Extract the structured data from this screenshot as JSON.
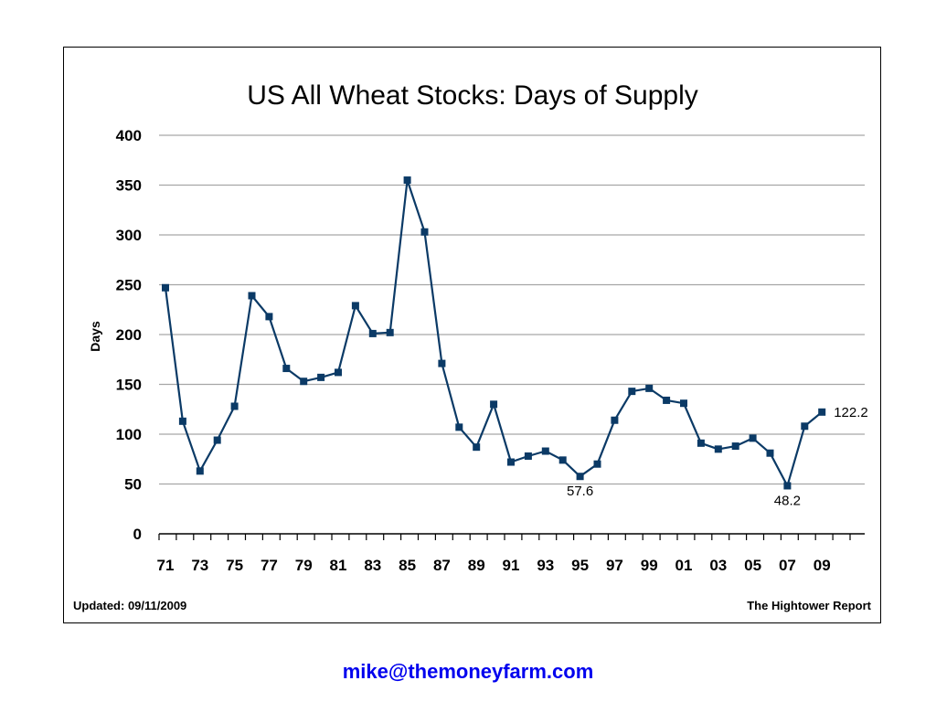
{
  "chart_data": {
    "type": "line",
    "title": "US All Wheat Stocks: Days of Supply",
    "xlabel": "",
    "ylabel": "Days",
    "ylim": [
      0,
      400
    ],
    "yticks": [
      0,
      50,
      100,
      150,
      200,
      250,
      300,
      350,
      400
    ],
    "xtick_labels": [
      "71",
      "73",
      "75",
      "77",
      "79",
      "81",
      "83",
      "85",
      "87",
      "89",
      "91",
      "93",
      "95",
      "97",
      "99",
      "01",
      "03",
      "05",
      "07",
      "09"
    ],
    "grid": "horizontal",
    "legend": "none",
    "colors": {
      "line": "#0b3a66",
      "marker": "#0b3a66",
      "grid": "#a6a6a6"
    },
    "x": [
      "71",
      "72",
      "73",
      "74",
      "75",
      "76",
      "77",
      "78",
      "79",
      "80",
      "81",
      "82",
      "83",
      "84",
      "85",
      "86",
      "87",
      "88",
      "89",
      "90",
      "91",
      "92",
      "93",
      "94",
      "95",
      "96",
      "97",
      "98",
      "99",
      "00",
      "01",
      "02",
      "03",
      "04",
      "05",
      "06",
      "07",
      "08",
      "09"
    ],
    "series": [
      {
        "values": [
          247,
          113,
          63,
          94,
          128,
          239,
          218,
          166,
          153,
          157,
          162,
          229,
          201,
          202,
          355,
          303,
          171,
          107,
          87,
          130,
          72,
          78,
          83,
          74,
          57.6,
          70,
          114,
          143,
          146,
          134,
          131,
          91,
          85,
          88,
          96,
          81,
          48.2,
          108,
          122.2
        ]
      }
    ],
    "annotations": [
      {
        "x": "95",
        "text": "57.6",
        "placement": "below"
      },
      {
        "x": "07",
        "text": "48.2",
        "placement": "below"
      },
      {
        "x": "09",
        "text": "122.2",
        "placement": "right"
      }
    ]
  },
  "footer": {
    "updated": "Updated: 09/11/2009",
    "source": "The Hightower Report"
  },
  "contact": {
    "email": "mike@themoneyfarm.com"
  }
}
